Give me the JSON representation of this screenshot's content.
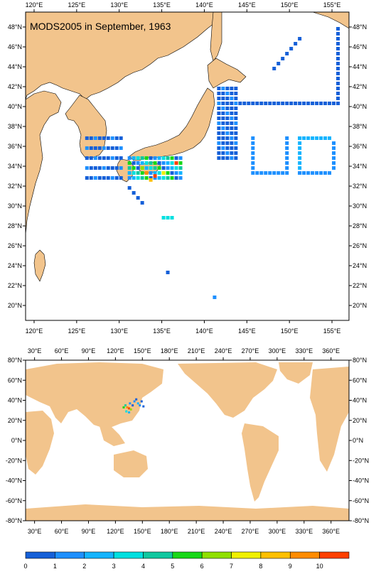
{
  "title": "MODS2005 in September, 1963",
  "colors": {
    "land": "#f2c48c",
    "ocean": "#ffffff",
    "frame": "#000000"
  },
  "regional_map": {
    "lon_range": [
      119,
      157
    ],
    "lat_range": [
      18.5,
      49.5
    ],
    "lon_ticks": [
      "120°E",
      "125°E",
      "130°E",
      "135°E",
      "140°E",
      "145°E",
      "150°E",
      "155°E"
    ],
    "lat_ticks": [
      "48°N",
      "46°N",
      "44°N",
      "42°N",
      "40°N",
      "38°N",
      "36°N",
      "34°N",
      "32°N",
      "30°N",
      "28°N",
      "26°N",
      "24°N",
      "22°N",
      "20°N"
    ]
  },
  "global_map": {
    "lon_range": [
      20,
      380
    ],
    "lat_range": [
      -80,
      80
    ],
    "lon_ticks": [
      "30°E",
      "60°E",
      "90°E",
      "120°E",
      "150°E",
      "180°E",
      "210°E",
      "240°E",
      "270°E",
      "300°E",
      "330°E",
      "360°E"
    ],
    "lat_ticks": [
      "80°N",
      "60°N",
      "40°N",
      "20°N",
      "0°N",
      "-20°N",
      "-40°N",
      "-60°N",
      "-80°N"
    ]
  },
  "colorbar": {
    "labels": [
      "0",
      "1",
      "2",
      "3",
      "4",
      "5",
      "6",
      "7",
      "8",
      "9",
      "10"
    ],
    "colors": [
      "#1560d8",
      "#1e90ff",
      "#14b4ff",
      "#00e0e0",
      "#10c8a0",
      "#18d818",
      "#90e000",
      "#f0f000",
      "#ffc000",
      "#ff8c00",
      "#ff4000"
    ]
  }
}
